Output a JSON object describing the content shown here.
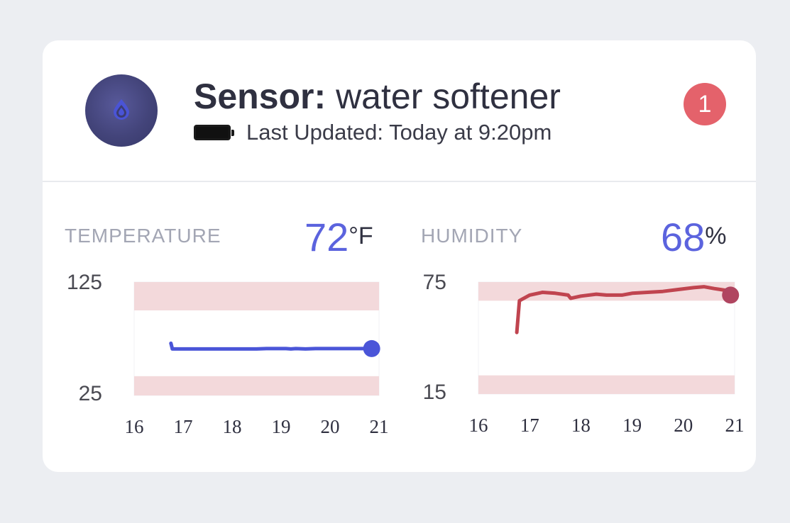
{
  "sensor": {
    "icon": "water-drop-icon",
    "title_prefix": "Sensor:",
    "title_name": "water softener",
    "battery_icon": "battery-full-icon",
    "last_updated": "Last Updated: Today at 9:20pm",
    "alert_count": "1"
  },
  "colors": {
    "accent": "#5b63de",
    "alert": "#e4626b",
    "temperature_line": "#4a55d8",
    "humidity_line": "#c0444f",
    "range_band": "#f3d9db"
  },
  "temperature": {
    "label": "TEMPERATURE",
    "value": "72",
    "unit": "°F"
  },
  "humidity": {
    "label": "HUMIDITY",
    "value": "68",
    "unit": "%"
  },
  "chart_data": [
    {
      "type": "line",
      "title": "TEMPERATURE",
      "xlabel": "",
      "ylabel": "",
      "x_ticks": [
        "16",
        "17",
        "18",
        "19",
        "20",
        "21"
      ],
      "y_ticks": [
        "125",
        "25"
      ],
      "xlim": [
        16,
        21
      ],
      "ylim": [
        25,
        125
      ],
      "bands": [
        [
          100,
          125
        ],
        [
          25,
          42
        ]
      ],
      "grid": false,
      "series": [
        {
          "x": [
            16.75,
            16.78,
            17.5,
            18.5,
            18.7,
            19.1,
            19.2,
            19.3,
            19.5,
            19.7,
            20.0,
            20.5,
            20.85
          ],
          "y": [
            71,
            66,
            66,
            66,
            66.3,
            66.3,
            66,
            66.3,
            66,
            66.3,
            66.3,
            66.3,
            66.3
          ]
        }
      ]
    },
    {
      "type": "line",
      "title": "HUMIDITY",
      "xlabel": "",
      "ylabel": "",
      "x_ticks": [
        "16",
        "17",
        "18",
        "19",
        "20",
        "21"
      ],
      "y_ticks": [
        "75",
        "15"
      ],
      "xlim": [
        16,
        21
      ],
      "ylim": [
        15,
        75
      ],
      "bands": [
        [
          65,
          75
        ],
        [
          15,
          25
        ]
      ],
      "grid": false,
      "series": [
        {
          "x": [
            16.75,
            16.8,
            17.0,
            17.25,
            17.5,
            17.75,
            17.8,
            18.0,
            18.3,
            18.5,
            18.8,
            19.0,
            19.3,
            19.6,
            19.9,
            20.2,
            20.4,
            20.6,
            20.85,
            20.92
          ],
          "y": [
            48,
            65,
            68,
            69.5,
            69,
            68,
            66.3,
            67.5,
            68.5,
            68,
            68,
            69,
            69.5,
            70,
            71,
            72,
            72.5,
            71.5,
            70.5,
            68
          ]
        }
      ]
    }
  ]
}
